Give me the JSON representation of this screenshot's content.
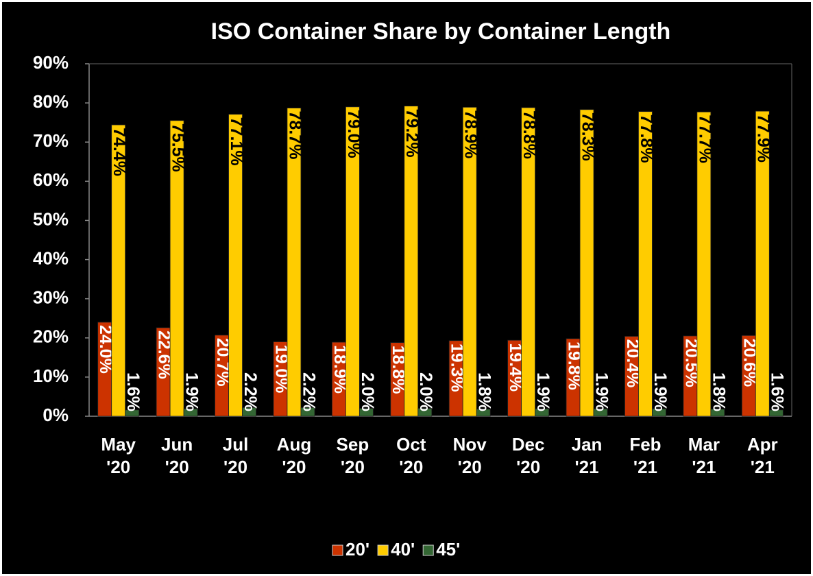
{
  "chart_data": {
    "type": "bar",
    "title": "ISO Container Share by Container Length",
    "categories": [
      "May '20",
      "Jun '20",
      "Jul '20",
      "Aug '20",
      "Sep '20",
      "Oct '20",
      "Nov '20",
      "Dec '20",
      "Jan '21",
      "Feb '21",
      "Mar '21",
      "Apr '21"
    ],
    "series": [
      {
        "name": "20'",
        "color": "#cc3300",
        "values": [
          24.0,
          22.6,
          20.7,
          19.0,
          18.9,
          18.8,
          19.3,
          19.4,
          19.8,
          20.4,
          20.5,
          20.6
        ],
        "value_labels": [
          "24.0%",
          "22.6%",
          "20.7%",
          "19.0%",
          "18.9%",
          "18.8%",
          "19.3%",
          "19.4%",
          "19.8%",
          "20.4%",
          "20.5%",
          "20.6%"
        ]
      },
      {
        "name": "40'",
        "color": "#ffcc00",
        "values": [
          74.4,
          75.5,
          77.1,
          78.7,
          79.0,
          79.2,
          78.9,
          78.8,
          78.3,
          77.8,
          77.7,
          77.9
        ],
        "value_labels": [
          "74.4%",
          "75.5%",
          "77.1%",
          "78.7%",
          "79.0%",
          "79.2%",
          "78.9%",
          "78.8%",
          "78.3%",
          "77.8%",
          "77.7%",
          "77.9%"
        ]
      },
      {
        "name": "45'",
        "color": "#336633",
        "values": [
          1.6,
          1.9,
          2.2,
          2.2,
          2.0,
          2.0,
          1.8,
          1.9,
          1.9,
          1.9,
          1.8,
          1.6
        ],
        "value_labels": [
          "1.6%",
          "1.9%",
          "2.2%",
          "2.2%",
          "2.0%",
          "2.0%",
          "1.8%",
          "1.9%",
          "1.9%",
          "1.9%",
          "1.8%",
          "1.6%"
        ]
      }
    ],
    "ylim": [
      0,
      90
    ],
    "yticks": [
      {
        "value": 0,
        "label": "0%"
      },
      {
        "value": 10,
        "label": "10%"
      },
      {
        "value": 20,
        "label": "20%"
      },
      {
        "value": 30,
        "label": "30%"
      },
      {
        "value": 40,
        "label": "40%"
      },
      {
        "value": 50,
        "label": "50%"
      },
      {
        "value": 60,
        "label": "60%"
      },
      {
        "value": 70,
        "label": "70%"
      },
      {
        "value": 80,
        "label": "80%"
      },
      {
        "value": 90,
        "label": "90%"
      }
    ],
    "grid": false,
    "legend": "bottom"
  }
}
